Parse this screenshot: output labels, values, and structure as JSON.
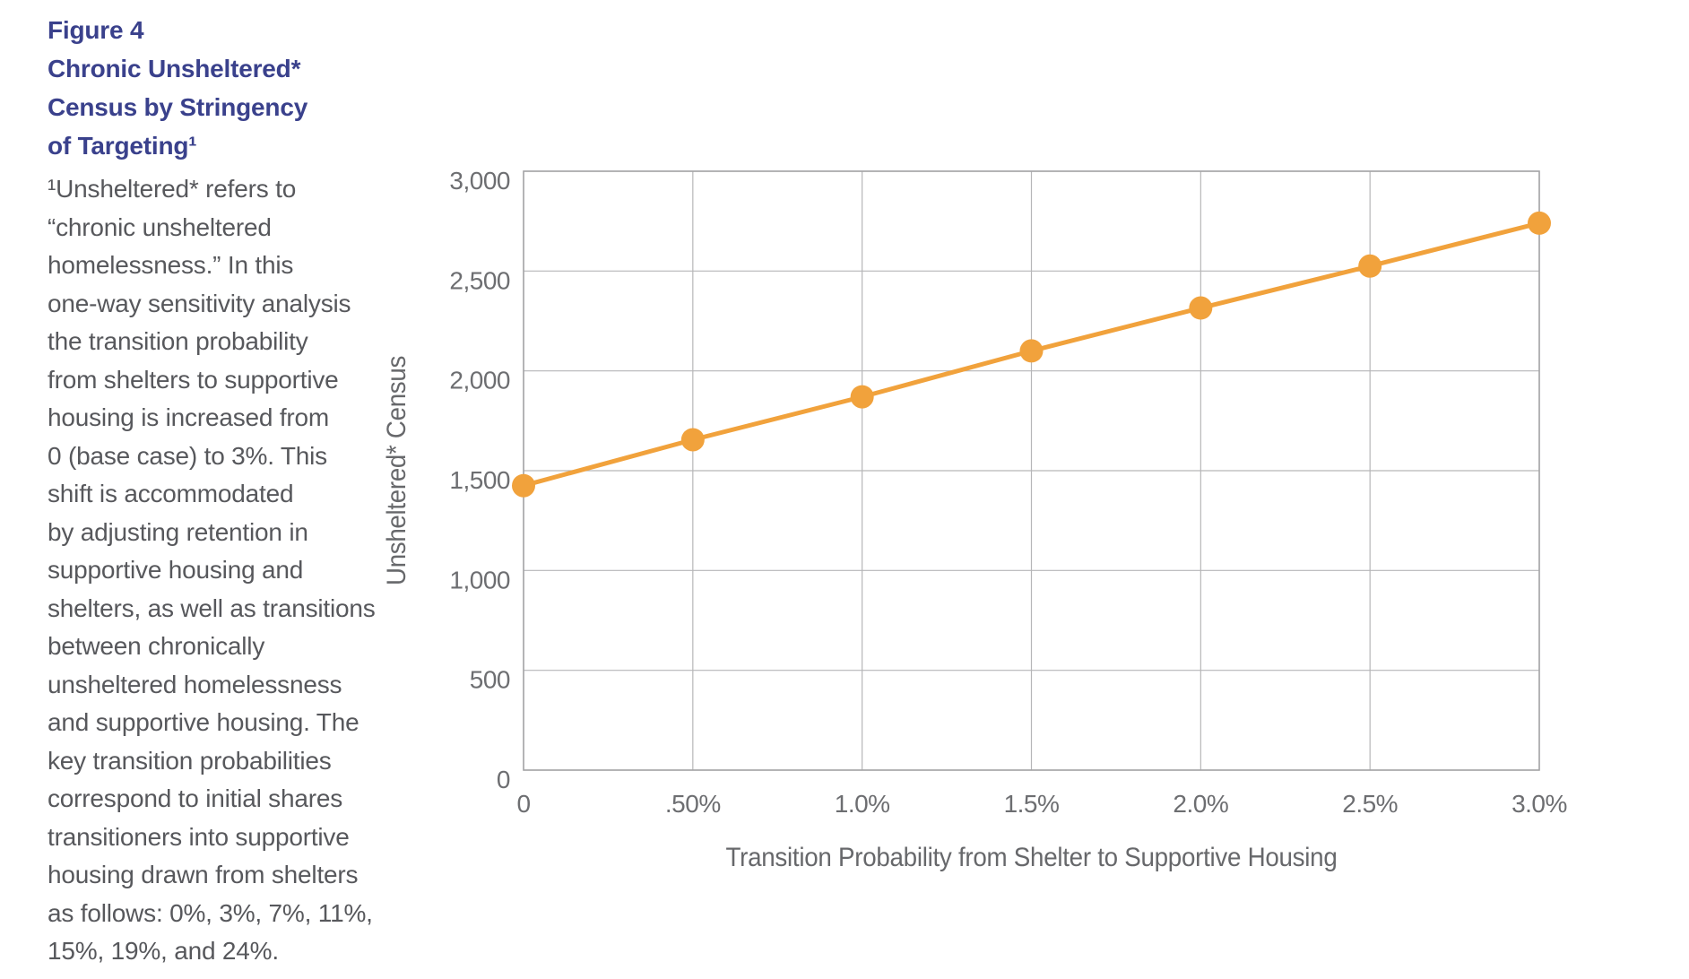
{
  "page": {
    "background": "#ffffff"
  },
  "sidebar": {
    "title_color": "#3a418c",
    "title_lines": [
      "Figure 4",
      "Chronic Unsheltered*",
      "Census by Stringency",
      "of Targeting¹"
    ],
    "body_lines": [
      "¹Unsheltered* refers to",
      "“chronic unsheltered",
      "homelessness.” In this",
      "one-way sensitivity analysis",
      "the transition probability",
      "from shelters to supportive",
      "housing is increased from",
      "0 (base case) to 3%. This",
      "shift is accommodated",
      "by adjusting retention in",
      "supportive housing and",
      "shelters, as well as transitions",
      "between chronically",
      "unsheltered homelessness",
      "and supportive housing. The",
      "key transition probabilities",
      "correspond to initial shares",
      "transitioners into supportive",
      "housing drawn from shelters",
      "as follows: 0%, 3%, 7%, 11%,",
      "15%, 19%, and 24%."
    ]
  },
  "chart_data": {
    "type": "line",
    "title": "",
    "xlabel": "Transition Probability from Shelter to Supportive Housing",
    "ylabel": "Unsheltered* Census",
    "x_tick_labels": [
      "0",
      ".50%",
      "1.0%",
      "1.5%",
      "2.0%",
      "2.5%",
      "3.0%"
    ],
    "x_values_pct": [
      0,
      0.5,
      1.0,
      1.5,
      2.0,
      2.5,
      3.0
    ],
    "xlim_pct": [
      0,
      3.0
    ],
    "y_tick_labels": [
      "0",
      "500",
      "1,000",
      "1,500",
      "2,000",
      "2,500",
      "3,000"
    ],
    "y_tick_values": [
      0,
      500,
      1000,
      1500,
      2000,
      2500,
      3000
    ],
    "ylim": [
      0,
      3000
    ],
    "grid": true,
    "legend": "none",
    "marker": "circle",
    "series": [
      {
        "name": "Unsheltered* Census",
        "color": "#f1a23c",
        "values": [
          1425,
          1655,
          1870,
          2100,
          2315,
          2525,
          2740
        ]
      }
    ]
  }
}
